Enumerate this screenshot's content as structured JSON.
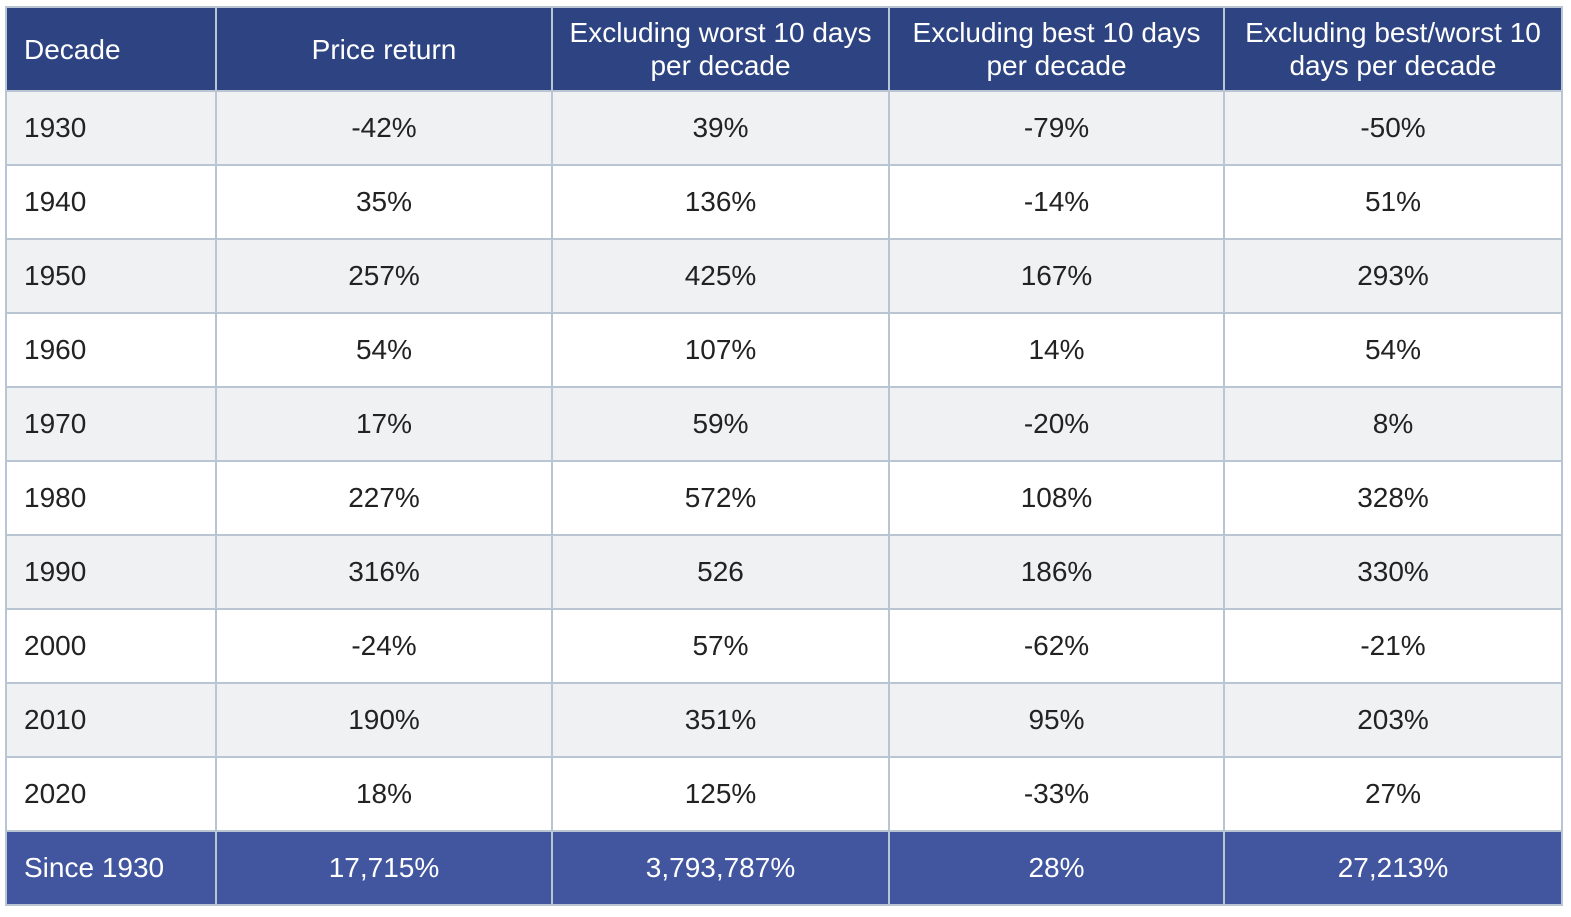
{
  "table": {
    "header": [
      "Decade",
      "Price return",
      "Excluding worst 10 days per decade",
      "Excluding best 10 days per decade",
      "Excluding best/worst 10 days per decade"
    ],
    "rows": [
      [
        "1930",
        "-42%",
        "39%",
        "-79%",
        "-50%"
      ],
      [
        "1940",
        "35%",
        "136%",
        "-14%",
        "51%"
      ],
      [
        "1950",
        "257%",
        "425%",
        "167%",
        "293%"
      ],
      [
        "1960",
        "54%",
        "107%",
        "14%",
        "54%"
      ],
      [
        "1970",
        "17%",
        "59%",
        "-20%",
        "8%"
      ],
      [
        "1980",
        "227%",
        "572%",
        "108%",
        "328%"
      ],
      [
        "1990",
        "316%",
        "526",
        "186%",
        "330%"
      ],
      [
        "2000",
        "-24%",
        "57%",
        "-62%",
        "-21%"
      ],
      [
        "2010",
        "190%",
        "351%",
        "95%",
        "203%"
      ],
      [
        "2020",
        "18%",
        "125%",
        "-33%",
        "27%"
      ]
    ],
    "footer": [
      "Since 1930",
      "17,715%",
      "3,793,787%",
      "28%",
      "27,213%"
    ]
  }
}
